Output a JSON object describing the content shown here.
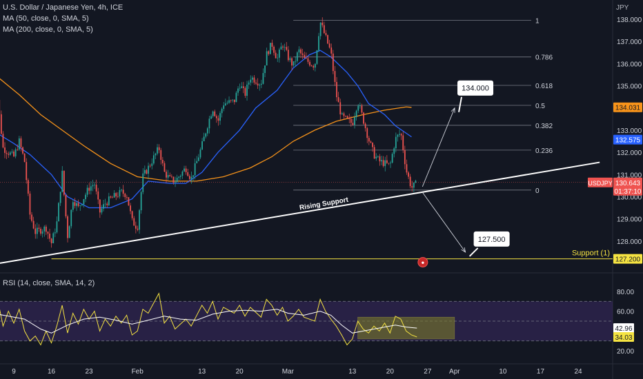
{
  "header": {
    "title": "U.S. Dollar / Japanese Yen, 4h, ICE",
    "ma1": "MA (50, close, 0, SMA, 5)",
    "ma2": "MA (200, close, 0, SMA, 5)",
    "rsi": "RSI (14, close, SMA, 14, 2)",
    "currency": "JPY"
  },
  "colors": {
    "background": "#131722",
    "bull": "#26a69a",
    "bear": "#ef5350",
    "ma50": "#2962ff",
    "ma200": "#f7931a",
    "support": "#f5e342",
    "rsi": "#f5e342",
    "rsi_ma": "#ffffff",
    "rsi_band": "#3a2a63",
    "fib": "#787b86"
  },
  "chart_data": {
    "type": "candlestick",
    "instrument": "USDJPY",
    "timeframe": "4h",
    "price_axis": {
      "ticks": [
        "138.000",
        "137.000",
        "136.000",
        "135.000",
        "134.000",
        "133.000",
        "132.000",
        "131.000",
        "130.000",
        "129.000",
        "128.000",
        "127.000"
      ],
      "range": [
        126.3,
        138.65
      ]
    },
    "x_axis": {
      "ticks": [
        "9",
        "16",
        "23",
        "Feb",
        "13",
        "20",
        "Mar",
        "13",
        "20",
        "27",
        "Apr",
        "10",
        "17",
        "24"
      ],
      "dates": [
        "2023-01-09",
        "2023-01-16",
        "2023-01-23",
        "2023-02-01",
        "2023-02-13",
        "2023-02-20",
        "2023-03-01",
        "2023-03-13",
        "2023-03-20",
        "2023-03-27",
        "2023-04-01",
        "2023-04-10",
        "2023-04-17",
        "2023-04-24"
      ]
    },
    "price_path": [
      [
        "2023-01-05",
        132.5
      ],
      [
        "2023-01-06",
        134.4
      ],
      [
        "2023-01-07",
        132.2
      ],
      [
        "2023-01-09",
        131.8
      ],
      [
        "2023-01-10",
        132.5
      ],
      [
        "2023-01-11",
        131.6
      ],
      [
        "2023-01-12",
        129.2
      ],
      [
        "2023-01-13",
        128.4
      ],
      [
        "2023-01-15",
        128.6
      ],
      [
        "2023-01-16",
        127.9
      ],
      [
        "2023-01-17",
        128.8
      ],
      [
        "2023-01-18",
        131.1
      ],
      [
        "2023-01-19",
        128.2
      ],
      [
        "2023-01-20",
        129.9
      ],
      [
        "2023-01-21",
        129.5
      ],
      [
        "2023-01-23",
        130.4
      ],
      [
        "2023-01-24",
        130.6
      ],
      [
        "2023-01-25",
        129.3
      ],
      [
        "2023-01-26",
        129.7
      ],
      [
        "2023-01-27",
        129.9
      ],
      [
        "2023-01-29",
        130.2
      ],
      [
        "2023-01-30",
        130.1
      ],
      [
        "2023-01-31",
        128.9
      ],
      [
        "2023-02-01",
        128.6
      ],
      [
        "2023-02-02",
        130.9
      ],
      [
        "2023-02-03",
        131.3
      ],
      [
        "2023-02-05",
        132.2
      ],
      [
        "2023-02-06",
        131.1
      ],
      [
        "2023-02-07",
        130.8
      ],
      [
        "2023-02-08",
        130.7
      ],
      [
        "2023-02-10",
        131.3
      ],
      [
        "2023-02-11",
        130.8
      ],
      [
        "2023-02-13",
        132.3
      ],
      [
        "2023-02-14",
        133.2
      ],
      [
        "2023-02-15",
        134.0
      ],
      [
        "2023-02-16",
        133.4
      ],
      [
        "2023-02-17",
        134.2
      ],
      [
        "2023-02-19",
        134.3
      ],
      [
        "2023-02-20",
        135.1
      ],
      [
        "2023-02-21",
        134.6
      ],
      [
        "2023-02-22",
        135.4
      ],
      [
        "2023-02-24",
        135.1
      ],
      [
        "2023-02-25",
        136.4
      ],
      [
        "2023-02-26",
        136.9
      ],
      [
        "2023-02-27",
        136.2
      ],
      [
        "2023-02-28",
        136.9
      ],
      [
        "2023-03-01",
        136.3
      ],
      [
        "2023-03-02",
        135.9
      ],
      [
        "2023-03-03",
        136.6
      ],
      [
        "2023-03-04",
        136.2
      ],
      [
        "2023-03-06",
        135.9
      ],
      [
        "2023-03-07",
        137.9
      ],
      [
        "2023-03-08",
        137.2
      ],
      [
        "2023-03-09",
        136.5
      ],
      [
        "2023-03-10",
        134.6
      ],
      [
        "2023-03-11",
        133.6
      ],
      [
        "2023-03-13",
        133.3
      ],
      [
        "2023-03-14",
        134.3
      ],
      [
        "2023-03-15",
        133.5
      ],
      [
        "2023-03-16",
        132.6
      ],
      [
        "2023-03-17",
        131.9
      ],
      [
        "2023-03-18",
        131.6
      ],
      [
        "2023-03-20",
        131.4
      ],
      [
        "2023-03-21",
        132.6
      ],
      [
        "2023-03-22",
        132.9
      ],
      [
        "2023-03-23",
        131.2
      ],
      [
        "2023-03-24",
        130.4
      ],
      [
        "2023-03-25",
        130.6
      ]
    ],
    "ma50_path": [
      [
        "2023-01-05",
        133.0
      ],
      [
        "2023-01-09",
        132.4
      ],
      [
        "2023-01-12",
        131.9
      ],
      [
        "2023-01-16",
        131.0
      ],
      [
        "2023-01-19",
        130.0
      ],
      [
        "2023-01-23",
        129.5
      ],
      [
        "2023-01-27",
        129.5
      ],
      [
        "2023-01-31",
        129.9
      ],
      [
        "2023-02-03",
        130.7
      ],
      [
        "2023-02-07",
        130.6
      ],
      [
        "2023-02-10",
        130.6
      ],
      [
        "2023-02-13",
        131.1
      ],
      [
        "2023-02-16",
        132.0
      ],
      [
        "2023-02-20",
        133.0
      ],
      [
        "2023-02-23",
        134.0
      ],
      [
        "2023-02-27",
        134.8
      ],
      [
        "2023-03-02",
        135.8
      ],
      [
        "2023-03-05",
        136.4
      ],
      [
        "2023-03-07",
        136.6
      ],
      [
        "2023-03-09",
        136.3
      ],
      [
        "2023-03-12",
        135.6
      ],
      [
        "2023-03-14",
        135.0
      ],
      [
        "2023-03-16",
        134.2
      ],
      [
        "2023-03-19",
        133.7
      ],
      [
        "2023-03-21",
        133.2
      ],
      [
        "2023-03-24",
        132.7
      ]
    ],
    "ma200_path": [
      [
        "2023-01-03",
        136.0
      ],
      [
        "2023-01-06",
        135.4
      ],
      [
        "2023-01-10",
        134.6
      ],
      [
        "2023-01-14",
        133.7
      ],
      [
        "2023-01-18",
        133.0
      ],
      [
        "2023-01-22",
        132.3
      ],
      [
        "2023-01-27",
        131.5
      ],
      [
        "2023-02-01",
        130.9
      ],
      [
        "2023-02-07",
        130.7
      ],
      [
        "2023-02-12",
        130.7
      ],
      [
        "2023-02-17",
        130.9
      ],
      [
        "2023-02-22",
        131.3
      ],
      [
        "2023-02-26",
        131.8
      ],
      [
        "2023-03-02",
        132.5
      ],
      [
        "2023-03-06",
        133.0
      ],
      [
        "2023-03-10",
        133.4
      ],
      [
        "2023-03-15",
        133.7
      ],
      [
        "2023-03-19",
        133.9
      ],
      [
        "2023-03-23",
        134.05
      ],
      [
        "2023-03-24",
        134.03
      ]
    ],
    "fibonacci": {
      "levels": [
        {
          "label": "1",
          "price": 137.95
        },
        {
          "label": "0.786",
          "price": 136.3
        },
        {
          "label": "0.618",
          "price": 135.02
        },
        {
          "label": "0.5",
          "price": 134.12
        },
        {
          "label": "0.382",
          "price": 133.22
        },
        {
          "label": "0.236",
          "price": 132.1
        },
        {
          "label": "0",
          "price": 130.3
        }
      ]
    },
    "trendline": {
      "label": "Rising Support",
      "from": [
        "2023-01-09",
        127.05
      ],
      "to": [
        "2023-04-28",
        131.55
      ]
    },
    "support_line": {
      "label": "Support (1)",
      "price": 127.2
    },
    "callouts": [
      {
        "text": "134.000",
        "from": [
          "2023-03-25",
          130.45
        ],
        "to": [
          "2023-03-31",
          134.0
        ]
      },
      {
        "text": "127.500",
        "from": [
          "2023-03-25",
          130.2
        ],
        "to": [
          "2023-04-02",
          127.5
        ]
      }
    ],
    "price_labels": [
      {
        "text": "134.031",
        "price": 134.031,
        "color": "#f7931a"
      },
      {
        "text": "132.575",
        "price": 132.575,
        "color": "#2962ff"
      },
      {
        "text": "130.643",
        "sub": "01:37:10",
        "price": 130.643,
        "color": "#ef5350",
        "symbol": "USDJPY"
      },
      {
        "text": "127.200",
        "price": 127.2,
        "color": "#f5e342"
      }
    ],
    "rsi": {
      "ticks": [
        "80.00",
        "60.00",
        "20.00"
      ],
      "range": [
        18,
        82
      ],
      "upper": 70,
      "middle": 50,
      "lower": 30,
      "rsi_label": "34.03",
      "ma_label": "42.96",
      "rsi_path": [
        [
          "2023-01-05",
          52
        ],
        [
          "2023-01-06",
          72
        ],
        [
          "2023-01-07",
          45
        ],
        [
          "2023-01-08",
          60
        ],
        [
          "2023-01-09",
          48
        ],
        [
          "2023-01-10",
          62
        ],
        [
          "2023-01-11",
          40
        ],
        [
          "2023-01-12",
          30
        ],
        [
          "2023-01-13",
          35
        ],
        [
          "2023-01-14",
          26
        ],
        [
          "2023-01-15",
          40
        ],
        [
          "2023-01-16",
          28
        ],
        [
          "2023-01-17",
          45
        ],
        [
          "2023-01-18",
          66
        ],
        [
          "2023-01-19",
          38
        ],
        [
          "2023-01-20",
          58
        ],
        [
          "2023-01-21",
          47
        ],
        [
          "2023-01-22",
          62
        ],
        [
          "2023-01-23",
          52
        ],
        [
          "2023-01-24",
          60
        ],
        [
          "2023-01-25",
          40
        ],
        [
          "2023-01-26",
          52
        ],
        [
          "2023-01-27",
          45
        ],
        [
          "2023-01-28",
          55
        ],
        [
          "2023-01-29",
          48
        ],
        [
          "2023-01-30",
          56
        ],
        [
          "2023-01-31",
          36
        ],
        [
          "2023-02-01",
          40
        ],
        [
          "2023-02-02",
          62
        ],
        [
          "2023-02-03",
          58
        ],
        [
          "2023-02-05",
          78
        ],
        [
          "2023-02-06",
          48
        ],
        [
          "2023-02-07",
          55
        ],
        [
          "2023-02-08",
          42
        ],
        [
          "2023-02-10",
          52
        ],
        [
          "2023-02-11",
          45
        ],
        [
          "2023-02-13",
          66
        ],
        [
          "2023-02-14",
          58
        ],
        [
          "2023-02-15",
          70
        ],
        [
          "2023-02-16",
          52
        ],
        [
          "2023-02-17",
          64
        ],
        [
          "2023-02-19",
          58
        ],
        [
          "2023-02-20",
          66
        ],
        [
          "2023-02-21",
          55
        ],
        [
          "2023-02-22",
          64
        ],
        [
          "2023-02-24",
          54
        ],
        [
          "2023-02-25",
          72
        ],
        [
          "2023-02-26",
          66
        ],
        [
          "2023-02-27",
          56
        ],
        [
          "2023-02-28",
          64
        ],
        [
          "2023-03-01",
          50
        ],
        [
          "2023-03-02",
          55
        ],
        [
          "2023-03-03",
          62
        ],
        [
          "2023-03-04",
          54
        ],
        [
          "2023-03-06",
          50
        ],
        [
          "2023-03-07",
          72
        ],
        [
          "2023-03-08",
          60
        ],
        [
          "2023-03-09",
          52
        ],
        [
          "2023-03-10",
          45
        ],
        [
          "2023-03-11",
          36
        ],
        [
          "2023-03-12",
          26
        ],
        [
          "2023-03-13",
          32
        ],
        [
          "2023-03-14",
          50
        ],
        [
          "2023-03-15",
          42
        ],
        [
          "2023-03-16",
          38
        ],
        [
          "2023-03-17",
          45
        ],
        [
          "2023-03-18",
          40
        ],
        [
          "2023-03-19",
          48
        ],
        [
          "2023-03-20",
          38
        ],
        [
          "2023-03-21",
          55
        ],
        [
          "2023-03-22",
          52
        ],
        [
          "2023-03-23",
          40
        ],
        [
          "2023-03-24",
          36
        ],
        [
          "2023-03-25",
          34
        ]
      ],
      "ma_path": [
        [
          "2023-01-05",
          58
        ],
        [
          "2023-01-08",
          55
        ],
        [
          "2023-01-11",
          52
        ],
        [
          "2023-01-14",
          42
        ],
        [
          "2023-01-16",
          38
        ],
        [
          "2023-01-19",
          46
        ],
        [
          "2023-01-22",
          52
        ],
        [
          "2023-01-25",
          54
        ],
        [
          "2023-01-28",
          51
        ],
        [
          "2023-01-31",
          47
        ],
        [
          "2023-02-03",
          51
        ],
        [
          "2023-02-06",
          55
        ],
        [
          "2023-02-09",
          52
        ],
        [
          "2023-02-12",
          51
        ],
        [
          "2023-02-15",
          57
        ],
        [
          "2023-02-18",
          60
        ],
        [
          "2023-02-21",
          61
        ],
        [
          "2023-02-24",
          60
        ],
        [
          "2023-02-27",
          62
        ],
        [
          "2023-03-01",
          58
        ],
        [
          "2023-03-04",
          56
        ],
        [
          "2023-03-07",
          60
        ],
        [
          "2023-03-09",
          56
        ],
        [
          "2023-03-11",
          46
        ],
        [
          "2023-03-13",
          38
        ],
        [
          "2023-03-15",
          40
        ],
        [
          "2023-03-17",
          42
        ],
        [
          "2023-03-19",
          44
        ],
        [
          "2023-03-21",
          46
        ],
        [
          "2023-03-23",
          44
        ],
        [
          "2023-03-25",
          42.96
        ]
      ],
      "box": {
        "from": [
          "2023-03-14",
          32
        ],
        "to": [
          "2023-04-01",
          54
        ]
      }
    }
  }
}
